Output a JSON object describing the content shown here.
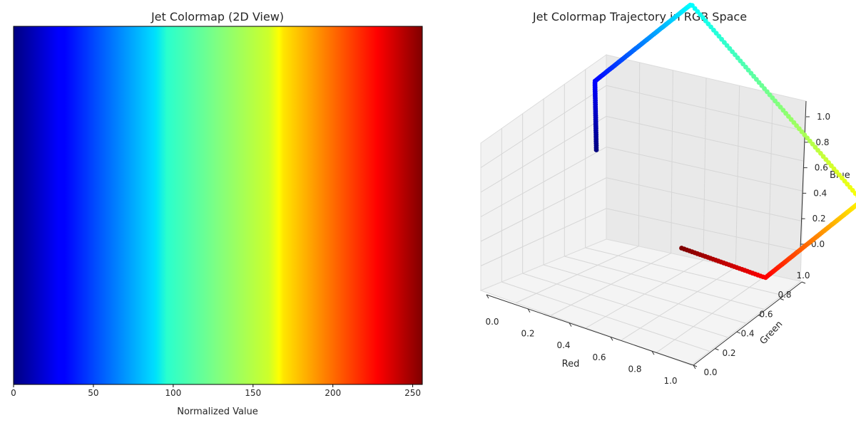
{
  "chart_data": [
    {
      "type": "heatmap",
      "title": "Jet Colormap (2D View)",
      "xlabel": "Normalized Value",
      "ylabel": "",
      "colormap": "jet",
      "xlim": [
        0,
        255
      ],
      "x_ticks": [
        0,
        50,
        100,
        150,
        200,
        250
      ],
      "y_ticks": []
    },
    {
      "type": "scatter3d",
      "title": "Jet Colormap Trajectory in RGB Space",
      "xlabel": "Red",
      "ylabel": "Green",
      "zlabel": "Blue",
      "xlim": [
        0,
        1
      ],
      "ylim": [
        0,
        1
      ],
      "zlim": [
        0,
        1
      ],
      "x_ticks": [
        "0.0",
        "0.2",
        "0.4",
        "0.6",
        "0.8",
        "1.0"
      ],
      "y_ticks": [
        "0.0",
        "0.2",
        "0.4",
        "0.6",
        "0.8",
        "1.0"
      ],
      "z_ticks": [
        "0.0",
        "0.2",
        "0.4",
        "0.6",
        "0.8",
        "1.0"
      ],
      "series": [
        {
          "points": [
            {
              "r": 0.0,
              "g": 0.0,
              "b": 0.5
            },
            {
              "r": 0.0,
              "g": 0.0,
              "b": 1.0
            },
            {
              "r": 0.0,
              "g": 0.5,
              "b": 1.0
            },
            {
              "r": 0.0,
              "g": 0.9,
              "b": 1.0
            },
            {
              "r": 0.13,
              "g": 1.0,
              "b": 0.97
            },
            {
              "r": 0.5,
              "g": 1.0,
              "b": 0.48
            },
            {
              "r": 0.97,
              "g": 1.0,
              "b": 0.13
            },
            {
              "r": 1.0,
              "g": 0.9,
              "b": 0.0
            },
            {
              "r": 1.0,
              "g": 0.5,
              "b": 0.0
            },
            {
              "r": 1.0,
              "g": 0.1,
              "b": 0.0
            },
            {
              "r": 0.9,
              "g": 0.0,
              "b": 0.0
            },
            {
              "r": 0.5,
              "g": 0.0,
              "b": 0.0
            }
          ]
        }
      ]
    }
  ]
}
